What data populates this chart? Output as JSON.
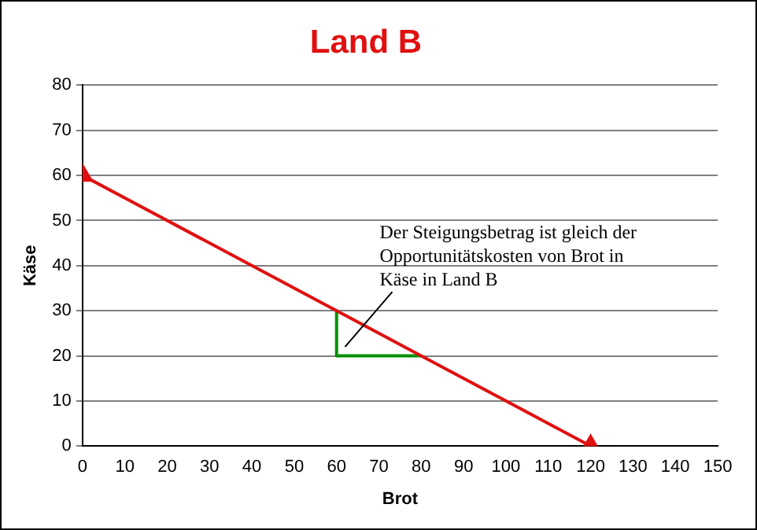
{
  "chart_data": {
    "type": "line",
    "title": "Land B",
    "xlabel": "Brot",
    "ylabel": "Käse",
    "xlim": [
      0,
      150
    ],
    "xticks": [
      0,
      10,
      20,
      30,
      40,
      50,
      60,
      70,
      80,
      90,
      100,
      110,
      120,
      130,
      140,
      150
    ],
    "ylim": [
      0,
      80
    ],
    "yticks": [
      0,
      10,
      20,
      30,
      40,
      50,
      60,
      70,
      80
    ],
    "grid": "y",
    "legend": false,
    "series": [
      {
        "color": "#e01010",
        "x": [
          0,
          120
        ],
        "values": [
          60,
          0
        ],
        "marker": "triangle"
      },
      {
        "color": "#009000",
        "x": [
          60,
          60,
          80
        ],
        "values": [
          30,
          20,
          20
        ],
        "marker": "none"
      }
    ],
    "annotations": [
      {
        "text": "Der Steigungsbetrag ist gleich der\nOpportunitätskosten von Brot in\nKäse in Land B",
        "x": 62,
        "y": 22
      }
    ]
  }
}
